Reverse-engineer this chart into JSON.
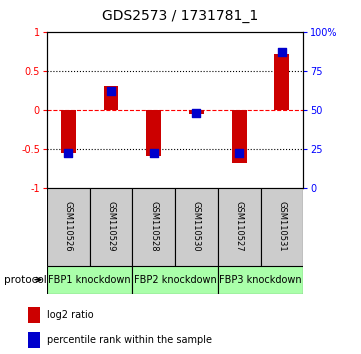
{
  "title": "GDS2573 / 1731781_1",
  "samples": [
    "GSM110526",
    "GSM110529",
    "GSM110528",
    "GSM110530",
    "GSM110527",
    "GSM110531"
  ],
  "log2_ratio": [
    -0.55,
    0.3,
    -0.6,
    -0.05,
    -0.68,
    0.72
  ],
  "percentile_rank": [
    22,
    62,
    22,
    48,
    22,
    87
  ],
  "bar_color": "#cc0000",
  "dot_color": "#0000cc",
  "ylim_left": [
    -1,
    1
  ],
  "ylim_right": [
    0,
    100
  ],
  "yticks_left": [
    -1,
    -0.5,
    0,
    0.5,
    1
  ],
  "yticks_right": [
    0,
    25,
    50,
    75,
    100
  ],
  "ytick_labels_right": [
    "0",
    "25",
    "50",
    "75",
    "100%"
  ],
  "ytick_labels_left": [
    "-1",
    "-0.5",
    "0",
    "0.5",
    "1"
  ],
  "protocols": [
    {
      "label": "FBP1 knockdown",
      "start": 0,
      "end": 2,
      "color": "#aaffaa"
    },
    {
      "label": "FBP2 knockdown",
      "start": 2,
      "end": 4,
      "color": "#aaffaa"
    },
    {
      "label": "FBP3 knockdown",
      "start": 4,
      "end": 6,
      "color": "#aaffaa"
    }
  ],
  "protocol_label": "protocol",
  "legend_items": [
    {
      "label": "log2 ratio",
      "color": "#cc0000"
    },
    {
      "label": "percentile rank within the sample",
      "color": "#0000cc"
    }
  ],
  "bar_width": 0.35,
  "dot_size": 30,
  "background_color": "#ffffff",
  "plot_bg_color": "#ffffff",
  "sample_box_color": "#cccccc",
  "title_fontsize": 10,
  "tick_fontsize": 7,
  "sample_fontsize": 6,
  "proto_fontsize": 7,
  "legend_fontsize": 7
}
